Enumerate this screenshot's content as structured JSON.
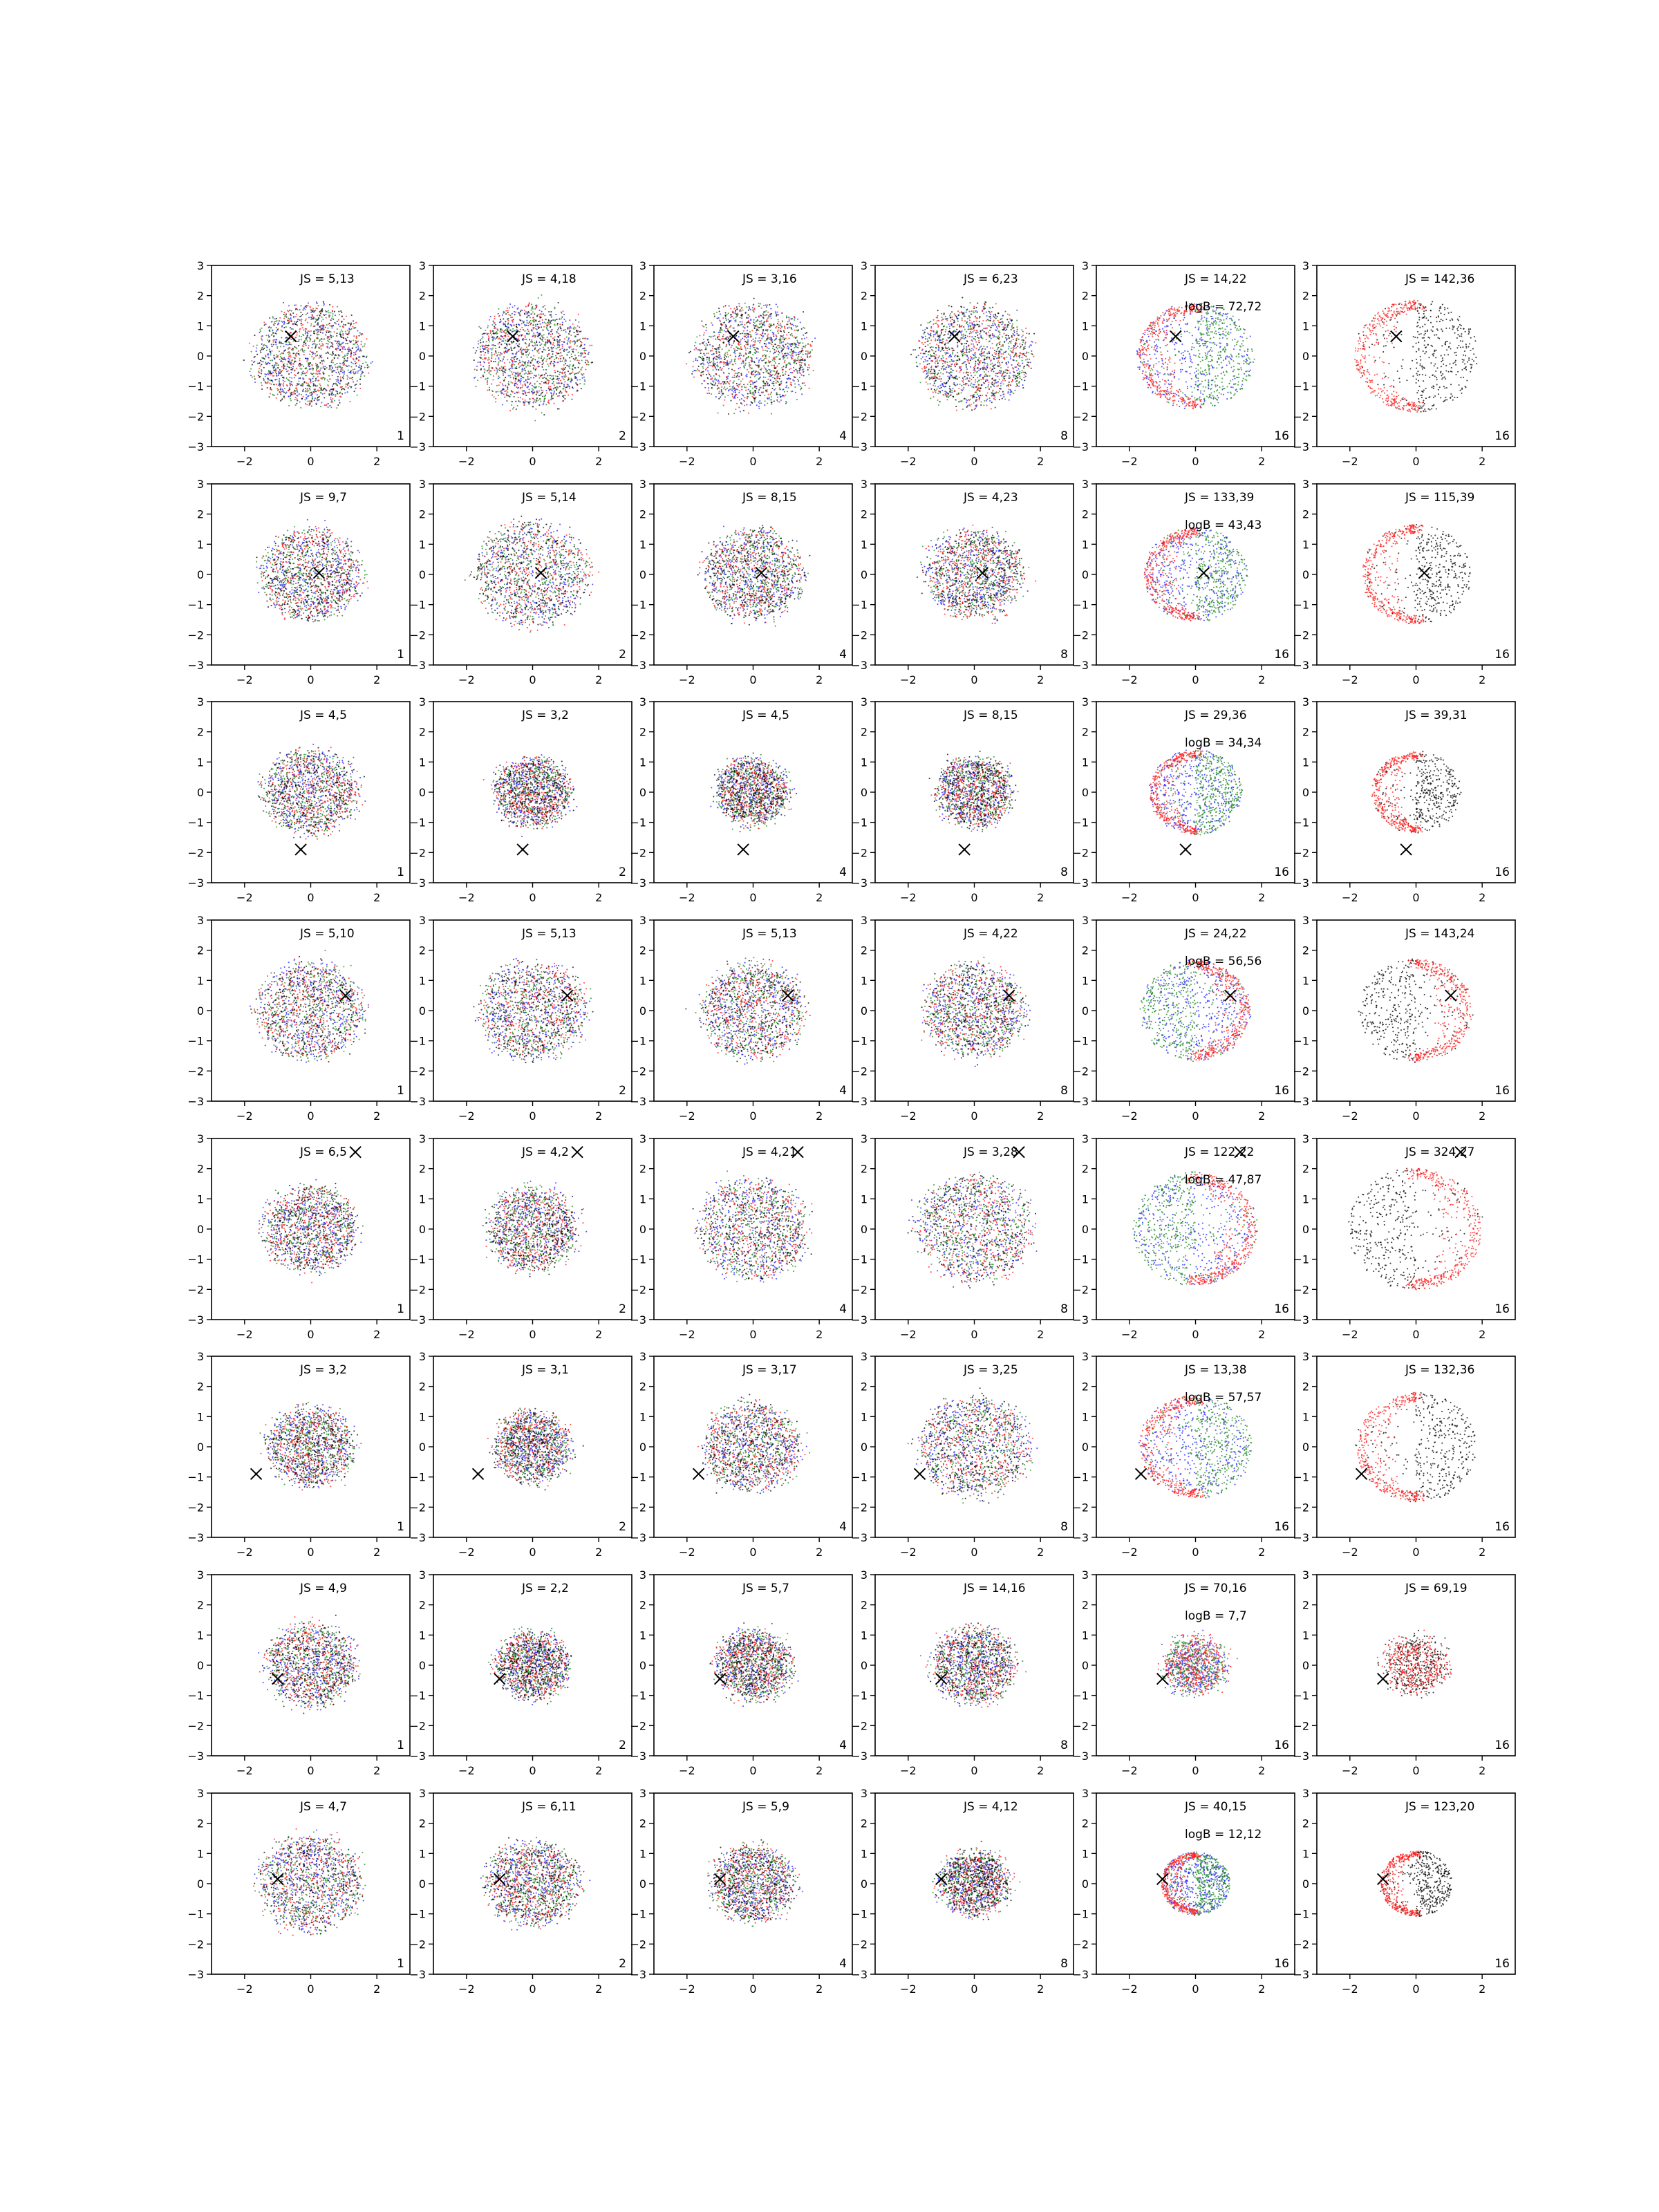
{
  "chart_data": {
    "type": "scatter",
    "layout": {
      "rows": 8,
      "cols": 6
    },
    "xlim": [
      -3,
      3
    ],
    "ylim": [
      -3,
      3
    ],
    "xticks": [
      -2,
      0,
      2
    ],
    "yticks": [
      -3,
      -2,
      -1,
      0,
      1,
      2,
      3
    ],
    "grid": false,
    "colors": {
      "blue": "#1f1fff",
      "green": "#1a8a1a",
      "red": "#ff1a1a",
      "black": "#000000"
    },
    "columns": [
      {
        "corner_label": "1",
        "colors": [
          "blue",
          "green",
          "red",
          "black"
        ]
      },
      {
        "corner_label": "2",
        "colors": [
          "blue",
          "green",
          "red",
          "black"
        ]
      },
      {
        "corner_label": "4",
        "colors": [
          "blue",
          "green",
          "red",
          "black"
        ]
      },
      {
        "corner_label": "8",
        "colors": [
          "blue",
          "green",
          "red",
          "black"
        ]
      },
      {
        "corner_label": "16",
        "colors": [
          "blue",
          "green",
          "red"
        ]
      },
      {
        "corner_label": "16",
        "colors": [
          "black",
          "red"
        ]
      }
    ],
    "rows": [
      {
        "marker": [
          -0.6,
          0.65
        ],
        "labels": [
          "JS = 5,13",
          "JS = 4,18",
          "JS = 3,16",
          "JS = 6,23",
          "JS = 14,22",
          "JS = 142,36"
        ],
        "logB": "logB = 72,72",
        "spread": [
          1.6,
          1.6,
          1.65,
          1.6,
          1.7,
          1.8
        ],
        "shape": [
          "blob",
          "blob",
          "blob",
          "blob",
          "shell-left",
          "shell-left"
        ]
      },
      {
        "marker": [
          0.25,
          0.05
        ],
        "labels": [
          "JS = 9,7",
          "JS = 5,14",
          "JS = 8,15",
          "JS = 4,23",
          "JS = 133,39",
          "JS = 115,39"
        ],
        "logB": "logB = 43,43",
        "spread": [
          1.4,
          1.6,
          1.4,
          1.35,
          1.5,
          1.6
        ],
        "shape": [
          "blob",
          "blob",
          "blob",
          "blob",
          "shell-left",
          "shell-left"
        ]
      },
      {
        "marker": [
          -0.3,
          -1.9
        ],
        "labels": [
          "JS = 4,5",
          "JS = 3,2",
          "JS = 4,5",
          "JS = 8,15",
          "JS = 29,36",
          "JS = 39,31"
        ],
        "logB": "logB = 34,34",
        "spread": [
          1.3,
          1.05,
          1.0,
          1.05,
          1.35,
          1.3
        ],
        "shape": [
          "blob",
          "blob",
          "blob",
          "blob",
          "shell-left",
          "shell-left"
        ]
      },
      {
        "marker": [
          1.05,
          0.5
        ],
        "labels": [
          "JS = 5,10",
          "JS = 5,13",
          "JS = 5,13",
          "JS = 4,22",
          "JS = 24,22",
          "JS = 143,24"
        ],
        "logB": "logB = 56,56",
        "spread": [
          1.5,
          1.5,
          1.45,
          1.4,
          1.6,
          1.65
        ],
        "shape": [
          "blob",
          "blob",
          "blob",
          "blob",
          "shell-right",
          "shell-right"
        ]
      },
      {
        "marker": [
          1.35,
          2.55
        ],
        "labels": [
          "JS = 6,5",
          "JS = 4,2",
          "JS = 4,21",
          "JS = 3,28",
          "JS = 122,22",
          "JS = 324,27"
        ],
        "logB": "logB = 47,87",
        "spread": [
          1.3,
          1.25,
          1.55,
          1.65,
          1.8,
          1.95
        ],
        "shape": [
          "blob",
          "blob",
          "blob",
          "blob",
          "shell-right",
          "shell-right"
        ]
      },
      {
        "marker": [
          -1.65,
          -0.9
        ],
        "labels": [
          "JS = 3,2",
          "JS = 3,1",
          "JS = 3,17",
          "JS = 3,25",
          "JS = 13,38",
          "JS = 132,36"
        ],
        "logB": "logB = 57,57",
        "spread": [
          1.2,
          1.05,
          1.35,
          1.55,
          1.65,
          1.75
        ],
        "shape": [
          "blob",
          "blob",
          "blob",
          "blob",
          "shell-left",
          "shell-left"
        ]
      },
      {
        "marker": [
          -1.0,
          -0.45
        ],
        "labels": [
          "JS = 4,9",
          "JS = 2,2",
          "JS = 5,7",
          "JS = 14,16",
          "JS = 70,16",
          "JS = 69,19"
        ],
        "logB": "logB = 7,7",
        "spread": [
          1.25,
          1.0,
          1.05,
          1.15,
          0.85,
          0.9
        ],
        "shape": [
          "blob",
          "blob",
          "blob",
          "blob",
          "blob",
          "blob"
        ]
      },
      {
        "marker": [
          -1.0,
          0.15
        ],
        "labels": [
          "JS = 4,7",
          "JS = 6,11",
          "JS = 5,9",
          "JS = 4,12",
          "JS = 40,15",
          "JS = 123,20"
        ],
        "logB": "logB = 12,12",
        "spread": [
          1.45,
          1.3,
          1.15,
          0.95,
          1.0,
          1.05
        ],
        "shape": [
          "blob",
          "blob",
          "blob",
          "blob",
          "shell-left",
          "shell-left"
        ]
      }
    ]
  }
}
